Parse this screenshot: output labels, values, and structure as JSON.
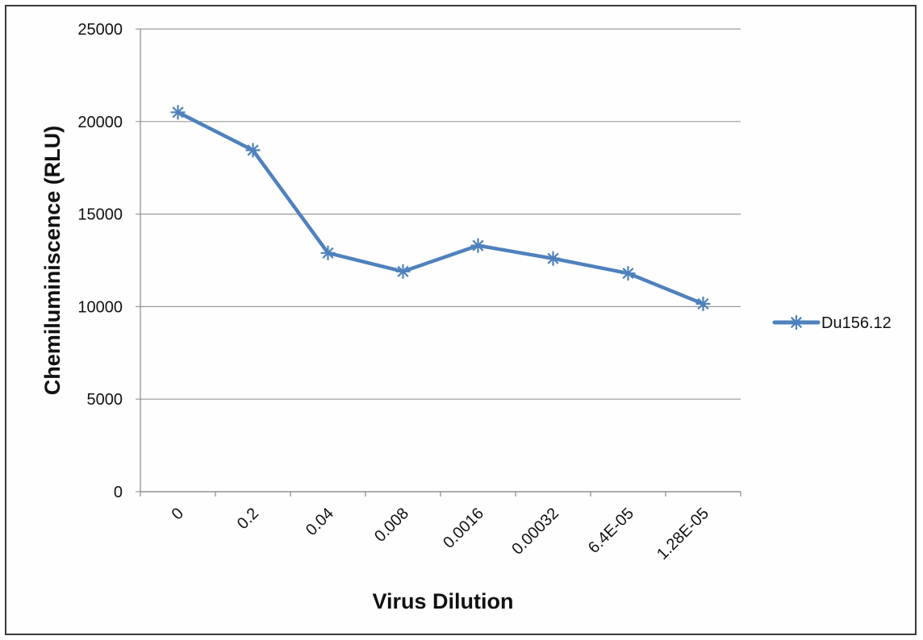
{
  "chart_data": {
    "type": "line",
    "title": "",
    "xlabel": "Virus Dilution",
    "ylabel": "Chemiluminiscence (RLU)",
    "categories": [
      "0",
      "0.2",
      "0.04",
      "0.008",
      "0.0016",
      "0.00032",
      "6.4E-05",
      "1.28E-05"
    ],
    "yticks": [
      "0",
      "5000",
      "10000",
      "15000",
      "20000",
      "25000"
    ],
    "ylim": [
      0,
      25000
    ],
    "grid": true,
    "legend_position": "right",
    "series": [
      {
        "name": "Du156.12",
        "color": "#4f81bd",
        "marker": "asterisk",
        "values": [
          20500,
          18450,
          12900,
          11900,
          13300,
          12600,
          11800,
          10150
        ]
      }
    ]
  }
}
